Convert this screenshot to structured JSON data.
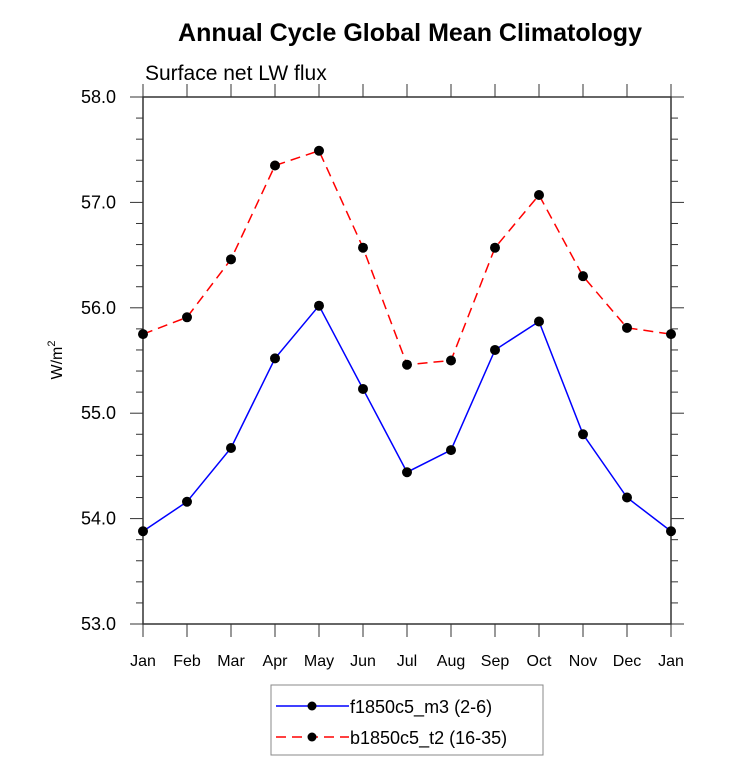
{
  "chart_data": {
    "type": "line",
    "title": "Annual Cycle Global Mean Climatology",
    "subtitle": "Surface net LW flux",
    "xlabel": "",
    "ylabel": "W/m",
    "ylabel_superscript": "2",
    "categories": [
      "Jan",
      "Feb",
      "Mar",
      "Apr",
      "May",
      "Jun",
      "Jul",
      "Aug",
      "Sep",
      "Oct",
      "Nov",
      "Dec",
      "Jan"
    ],
    "ylim": [
      53.0,
      58.0
    ],
    "yticks": [
      53.0,
      54.0,
      55.0,
      56.0,
      57.0,
      58.0
    ],
    "ytick_labels": [
      "53.0",
      "54.0",
      "55.0",
      "56.0",
      "57.0",
      "58.0"
    ],
    "yminor_step": 0.2,
    "grid": false,
    "legend_position": "bottom-center",
    "series": [
      {
        "name": "f1850c5_m3 (2-6)",
        "color": "#0000ff",
        "line_style": "solid",
        "marker": "filled-circle",
        "marker_color": "#000000",
        "values": [
          53.88,
          54.16,
          54.67,
          55.52,
          56.02,
          55.23,
          54.44,
          54.65,
          55.6,
          55.87,
          54.8,
          54.2,
          53.88
        ]
      },
      {
        "name": "b1850c5_t2 (16-35)",
        "color": "#ff0000",
        "line_style": "dashed",
        "marker": "filled-circle",
        "marker_color": "#000000",
        "values": [
          55.75,
          55.91,
          56.46,
          57.35,
          57.49,
          56.57,
          55.46,
          55.5,
          56.57,
          57.07,
          56.3,
          55.81,
          55.75
        ]
      }
    ]
  }
}
